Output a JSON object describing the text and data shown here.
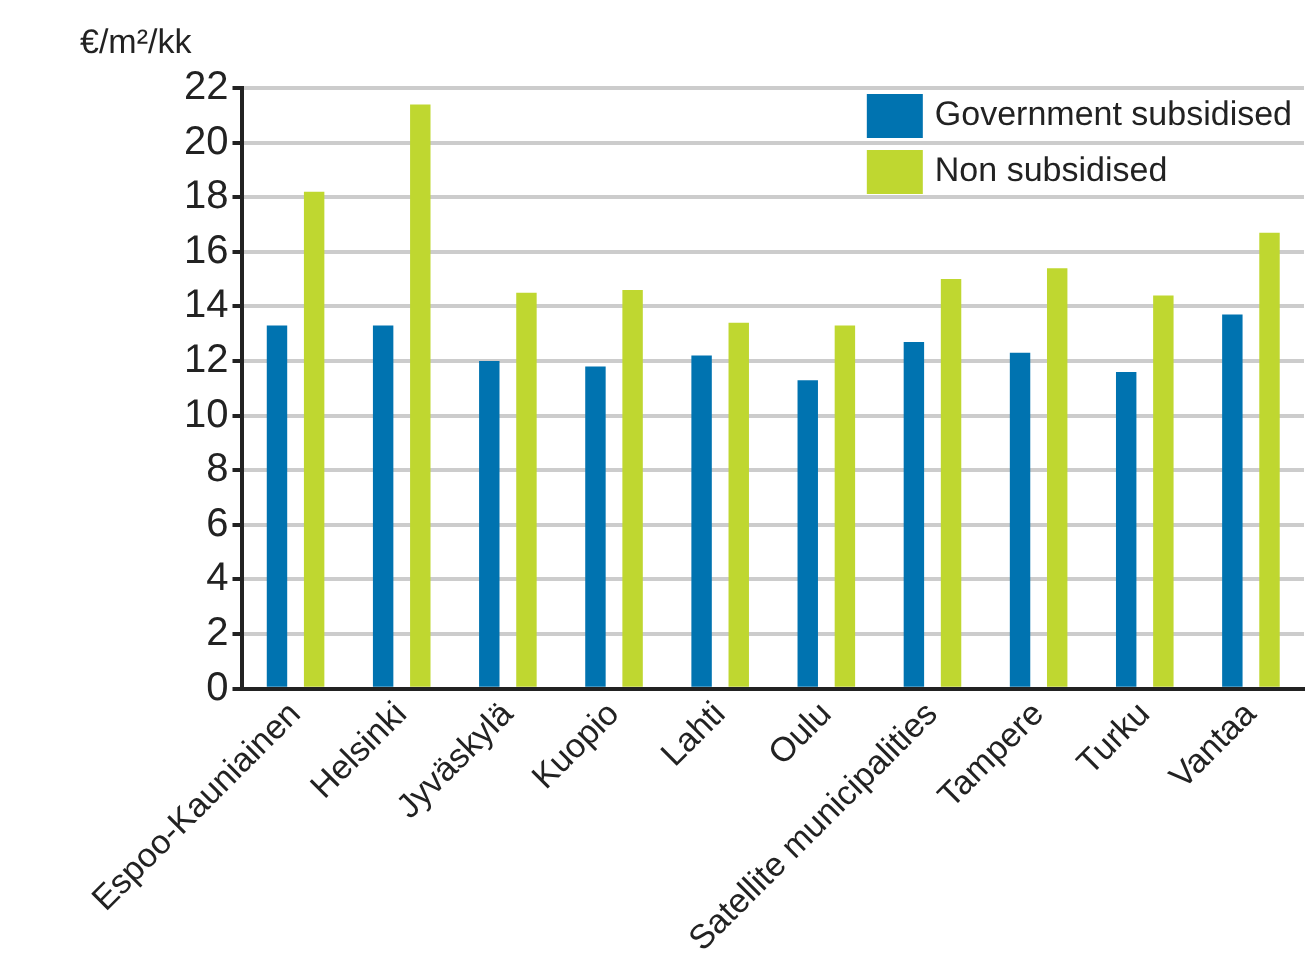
{
  "chart_data": {
    "type": "bar",
    "ylabel": "€/m²/kk",
    "categories": [
      "Espoo-Kauniainen",
      "Helsinki",
      "Jyväskylä",
      "Kuopio",
      "Lahti",
      "Oulu",
      "Satellite municipalities",
      "Tampere",
      "Turku",
      "Vantaa"
    ],
    "series": [
      {
        "name": "Government subsidised",
        "color": "#0073b0",
        "values": [
          13.3,
          13.3,
          12.0,
          11.8,
          12.2,
          11.3,
          12.7,
          12.3,
          11.6,
          13.7
        ]
      },
      {
        "name": "Non subsidised",
        "color": "#bfd730",
        "values": [
          18.2,
          21.4,
          14.5,
          14.6,
          13.4,
          13.3,
          15.0,
          15.4,
          14.4,
          16.7
        ]
      }
    ],
    "ylim": [
      0,
      22
    ],
    "yticks": [
      0,
      2,
      4,
      6,
      8,
      10,
      12,
      14,
      16,
      18,
      20,
      22
    ],
    "grid": "y",
    "legend": "top right"
  }
}
